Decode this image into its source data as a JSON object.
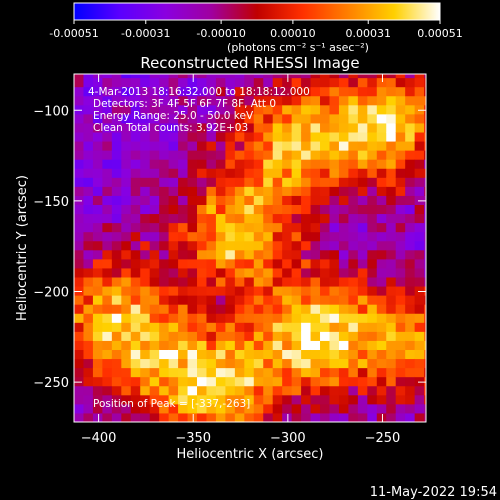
{
  "chart_data": {
    "type": "heatmap",
    "title": "Reconstructed RHESSI Image",
    "xlabel": "Heliocentric X (arcsec)",
    "ylabel": "Heliocentric Y (arcsec)",
    "xlim": [
      -413,
      -227
    ],
    "ylim": [
      -272,
      -80
    ],
    "xticks": [
      -400,
      -350,
      -300,
      -250
    ],
    "yticks": [
      -100,
      -150,
      -200,
      -250
    ],
    "colorbar": {
      "ticks": [
        "-0.00051",
        "-0.00031",
        "-0.00010",
        "0.00010",
        "0.00031",
        "0.00051"
      ],
      "range": [
        -0.00051,
        0.00051
      ],
      "unit_label": "(photons cm⁻² s⁻¹ asec⁻²)",
      "colors": [
        "#0000ff",
        "#5a00ff",
        "#8a00e0",
        "#a000a0",
        "#c00000",
        "#ff3000",
        "#ff8000",
        "#ffd000",
        "#ffffff"
      ]
    },
    "annotations": {
      "time": "4-Mar-2013 18:16:32.000 to 18:18:12.000",
      "detectors": "Detectors: 3F 4F 5F 6F 7F 8F, Att 0",
      "energy": "Energy Range: 25.0 - 50.0 keV",
      "clean": "Clean     Total counts: 3.92E+03",
      "peak": "Position of Peak = [-337,-263]"
    },
    "bright_regions": [
      {
        "x": -330,
        "y": -170,
        "level": 0.85
      },
      {
        "x": -300,
        "y": -120,
        "level": 0.8
      },
      {
        "x": -250,
        "y": -110,
        "level": 0.9
      },
      {
        "x": -290,
        "y": -225,
        "level": 0.95
      },
      {
        "x": -340,
        "y": -255,
        "level": 0.9
      },
      {
        "x": -380,
        "y": -235,
        "level": 0.6
      },
      {
        "x": -400,
        "y": -210,
        "level": 0.55
      },
      {
        "x": -240,
        "y": -230,
        "level": 0.7
      }
    ]
  },
  "footer": {
    "timestamp": "11-May-2022 19:54"
  }
}
